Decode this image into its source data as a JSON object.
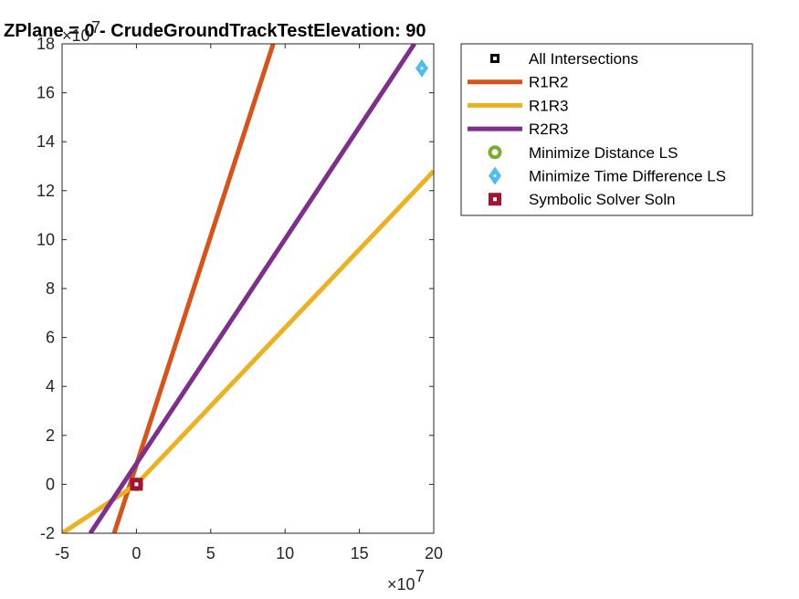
{
  "chart_data": {
    "type": "line",
    "title": "ZPlane = 0 - CrudeGroundTrackTestElevation: 90",
    "xlabel": "",
    "ylabel": "",
    "x_exponent_label": "×10",
    "x_exponent": "7",
    "y_exponent_label": "×10",
    "y_exponent": "7",
    "xlim": [
      -5,
      20
    ],
    "ylim": [
      -2,
      18
    ],
    "xticks": [
      "-5",
      "0",
      "5",
      "10",
      "15",
      "20"
    ],
    "yticks": [
      "-2",
      "0",
      "2",
      "4",
      "6",
      "8",
      "10",
      "12",
      "14",
      "16",
      "18"
    ],
    "legend_position": "outside-top-right",
    "series": [
      {
        "name": "All Intersections",
        "kind": "marker",
        "marker": "square",
        "color": "#000000",
        "points": [
          [
            0,
            0
          ]
        ]
      },
      {
        "name": "R1R2",
        "kind": "line",
        "color": "#D95319",
        "points": [
          [
            -1.5,
            -2
          ],
          [
            9.2,
            18
          ]
        ]
      },
      {
        "name": "R1R3",
        "kind": "line",
        "color": "#EDB120",
        "points": [
          [
            -5,
            -2
          ],
          [
            0,
            0
          ],
          [
            20,
            12.8
          ]
        ]
      },
      {
        "name": "R2R3",
        "kind": "line",
        "color": "#7E2F8E",
        "points": [
          [
            -3.1,
            -2
          ],
          [
            18.7,
            18
          ]
        ]
      },
      {
        "name": "Minimize Distance LS",
        "kind": "marker",
        "marker": "circle",
        "color": "#77AC30",
        "points": [
          [
            0,
            0
          ]
        ]
      },
      {
        "name": "Minimize Time Difference LS",
        "kind": "marker",
        "marker": "diamond",
        "color": "#4DBEEE",
        "points": [
          [
            19.2,
            17
          ]
        ]
      },
      {
        "name": "Symbolic Solver Soln",
        "kind": "marker",
        "marker": "square",
        "color": "#A2142F",
        "points": [
          [
            0,
            0
          ]
        ]
      }
    ]
  }
}
